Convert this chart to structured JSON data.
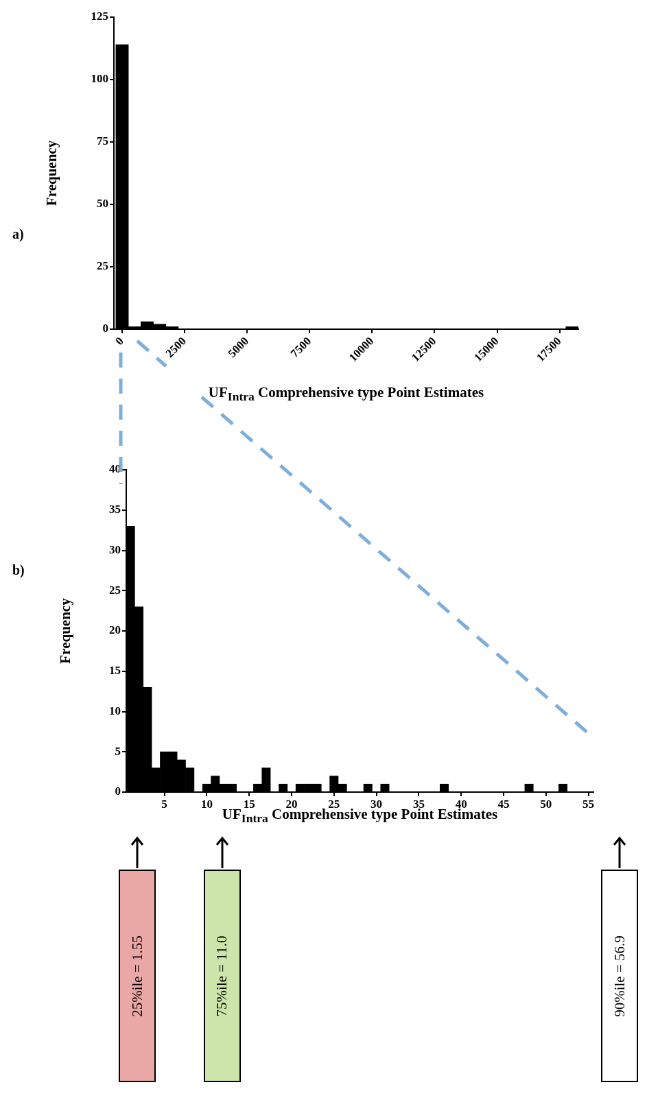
{
  "chart_data": [
    {
      "type": "histogram",
      "ylabel": "Frequency",
      "xlabel": "UF$_{Intra}$ Comprehensive type Point Estimates",
      "color": "#000000",
      "bins": [
        -250,
        250,
        750,
        1250,
        1750,
        2250,
        2750,
        3250,
        3750,
        4250,
        4750,
        5250,
        5750,
        6250,
        6750,
        7250,
        7750,
        8250,
        8750,
        9250,
        9750,
        10250,
        10750,
        11250,
        11750,
        12250,
        12750,
        13250,
        13750,
        14250,
        14750,
        15250,
        15750,
        16250,
        16750,
        17250,
        17750,
        18250
      ],
      "values": [
        114,
        1,
        3,
        2,
        1,
        0,
        0,
        0,
        0,
        0,
        0,
        0,
        0,
        0,
        0,
        0,
        0,
        0,
        0,
        0,
        0,
        0,
        0,
        0,
        0,
        0,
        0,
        0,
        0,
        0,
        0,
        0,
        0,
        0,
        0,
        0,
        1
      ],
      "xlim": [
        -330,
        18250
      ],
      "xticks": [
        0,
        2500,
        5000,
        7500,
        10000,
        12500,
        15000,
        17500
      ],
      "ylim": [
        0,
        125
      ],
      "yticks": [
        0,
        25,
        50,
        75,
        100,
        125
      ],
      "annotations": [
        "a)"
      ]
    },
    {
      "type": "histogram",
      "ylabel": "Frequency",
      "xlabel": "UF$_{Intra}$ Comprehensive type Point Estimates",
      "color": "#000000",
      "bins": [
        0.5,
        1.5,
        2.5,
        3.5,
        4.5,
        5.5,
        6.5,
        7.5,
        8.5,
        9.5,
        10.5,
        11.5,
        12.5,
        13.5,
        14.5,
        15.5,
        16.5,
        17.5,
        18.5,
        19.5,
        20.5,
        21.5,
        22.5,
        23.5,
        24.5,
        25.5,
        26.5,
        27.5,
        28.5,
        29.5,
        30.5,
        31.5,
        32.5,
        33.5,
        34.5,
        35.5,
        36.5,
        37.5,
        38.5,
        39.5,
        40.5,
        41.5,
        42.5,
        43.5,
        44.5,
        45.5,
        46.5,
        47.5,
        48.5,
        49.5,
        50.5,
        51.5,
        52.5
      ],
      "values": [
        33,
        23,
        13,
        3,
        5,
        5,
        4,
        3,
        0,
        1,
        2,
        1,
        1,
        0,
        0,
        1,
        3,
        0,
        1,
        0,
        1,
        1,
        1,
        0,
        2,
        1,
        0,
        0,
        1,
        0,
        1,
        0,
        0,
        0,
        0,
        0,
        0,
        1,
        0,
        0,
        0,
        0,
        0,
        0,
        0,
        0,
        0,
        1,
        0,
        0,
        0,
        1
      ],
      "xlim": [
        0.5,
        55.6
      ],
      "xticks": [
        5,
        10,
        15,
        20,
        25,
        30,
        35,
        40,
        45,
        50,
        55
      ],
      "ylim": [
        0,
        40
      ],
      "yticks": [
        0,
        5,
        10,
        15,
        20,
        25,
        30,
        35,
        40
      ],
      "annotations": [
        "b)",
        "25%ile = 1.55",
        "75%ile = 11.0",
        "90%ile = 56.9"
      ]
    }
  ]
}
